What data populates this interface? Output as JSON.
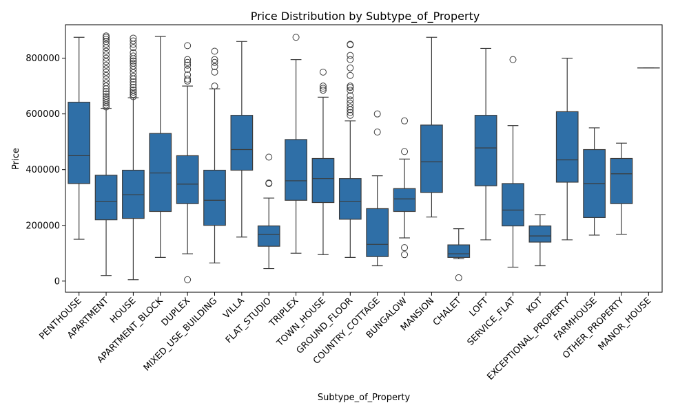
{
  "chart_data": {
    "type": "box",
    "title": "Price Distribution by Subtype_of_Property",
    "xlabel": "Subtype_of_Property",
    "ylabel": "Price",
    "ylim": [
      -40000,
      920000
    ],
    "yticks": [
      0,
      200000,
      400000,
      600000,
      800000
    ],
    "ytick_labels": [
      "0",
      "200000",
      "400000",
      "600000",
      "800000"
    ],
    "box_color": "#2f6fa7",
    "line_color": "#3b3b3b",
    "series": [
      {
        "category": "PENTHOUSE",
        "whisker_low": 150000,
        "q1": 350000,
        "median": 450000,
        "q3": 642000,
        "whisker_high": 875000,
        "outliers": []
      },
      {
        "category": "APARTMENT",
        "whisker_low": 20000,
        "q1": 220000,
        "median": 285000,
        "q3": 380000,
        "whisker_high": 620000,
        "outliers": [
          625000,
          632000,
          640000,
          648000,
          655000,
          663000,
          672000,
          680000,
          690000,
          700000,
          712000,
          725000,
          738000,
          750000,
          762000,
          775000,
          788000,
          800000,
          812000,
          825000,
          838000,
          850000,
          860000,
          868000,
          875000,
          880000
        ]
      },
      {
        "category": "HOUSE",
        "whisker_low": 5000,
        "q1": 225000,
        "median": 310000,
        "q3": 398000,
        "whisker_high": 658000,
        "outliers": [
          662000,
          670000,
          678000,
          686000,
          695000,
          705000,
          715000,
          725000,
          735000,
          748000,
          760000,
          772000,
          782000,
          790000,
          798000,
          808000,
          820000,
          838000,
          850000,
          862000,
          872000
        ]
      },
      {
        "category": "APARTMENT_BLOCK",
        "whisker_low": 85000,
        "q1": 250000,
        "median": 388000,
        "q3": 530000,
        "whisker_high": 878000,
        "outliers": []
      },
      {
        "category": "DUPLEX",
        "whisker_low": 98000,
        "q1": 278000,
        "median": 348000,
        "q3": 450000,
        "whisker_high": 700000,
        "outliers": [
          5000,
          718000,
          725000,
          740000,
          760000,
          775000,
          785000,
          795000,
          845000
        ]
      },
      {
        "category": "MIXED_USE_BUILDING",
        "whisker_low": 65000,
        "q1": 200000,
        "median": 290000,
        "q3": 398000,
        "whisker_high": 690000,
        "outliers": [
          700000,
          750000,
          770000,
          785000,
          795000,
          825000
        ]
      },
      {
        "category": "VILLA",
        "whisker_low": 158000,
        "q1": 398000,
        "median": 472000,
        "q3": 595000,
        "whisker_high": 860000,
        "outliers": []
      },
      {
        "category": "FLAT_STUDIO",
        "whisker_low": 45000,
        "q1": 125000,
        "median": 168000,
        "q3": 198000,
        "whisker_high": 298000,
        "outliers": [
          350000,
          352000,
          445000
        ]
      },
      {
        "category": "TRIPLEX",
        "whisker_low": 100000,
        "q1": 290000,
        "median": 360000,
        "q3": 508000,
        "whisker_high": 795000,
        "outliers": [
          875000
        ]
      },
      {
        "category": "TOWN_HOUSE",
        "whisker_low": 95000,
        "q1": 282000,
        "median": 368000,
        "q3": 440000,
        "whisker_high": 660000,
        "outliers": [
          685000,
          692000,
          700000,
          750000
        ]
      },
      {
        "category": "GROUND_FLOOR",
        "whisker_low": 85000,
        "q1": 222000,
        "median": 285000,
        "q3": 368000,
        "whisker_high": 575000,
        "outliers": [
          595000,
          605000,
          615000,
          625000,
          638000,
          650000,
          665000,
          685000,
          695000,
          700000,
          738000,
          765000,
          795000,
          810000,
          848000,
          850000
        ]
      },
      {
        "category": "COUNTRY_COTTAGE",
        "whisker_low": 55000,
        "q1": 88000,
        "median": 132000,
        "q3": 260000,
        "whisker_high": 378000,
        "outliers": [
          535000,
          600000
        ]
      },
      {
        "category": "BUNGALOW",
        "whisker_low": 155000,
        "q1": 250000,
        "median": 295000,
        "q3": 332000,
        "whisker_high": 438000,
        "outliers": [
          95000,
          120000,
          465000,
          575000
        ]
      },
      {
        "category": "MANSION",
        "whisker_low": 230000,
        "q1": 318000,
        "median": 428000,
        "q3": 560000,
        "whisker_high": 875000,
        "outliers": []
      },
      {
        "category": "CHALET",
        "whisker_low": 80000,
        "q1": 85000,
        "median": 98000,
        "q3": 130000,
        "whisker_high": 188000,
        "outliers": [
          12000
        ]
      },
      {
        "category": "LOFT",
        "whisker_low": 148000,
        "q1": 342000,
        "median": 478000,
        "q3": 595000,
        "whisker_high": 835000,
        "outliers": []
      },
      {
        "category": "SERVICE_FLAT",
        "whisker_low": 50000,
        "q1": 198000,
        "median": 255000,
        "q3": 350000,
        "whisker_high": 558000,
        "outliers": [
          795000
        ]
      },
      {
        "category": "KOT",
        "whisker_low": 55000,
        "q1": 140000,
        "median": 162000,
        "q3": 198000,
        "whisker_high": 238000,
        "outliers": []
      },
      {
        "category": "EXCEPTIONAL_PROPERTY",
        "whisker_low": 148000,
        "q1": 355000,
        "median": 435000,
        "q3": 608000,
        "whisker_high": 800000,
        "outliers": []
      },
      {
        "category": "FARMHOUSE",
        "whisker_low": 165000,
        "q1": 228000,
        "median": 350000,
        "q3": 472000,
        "whisker_high": 550000,
        "outliers": []
      },
      {
        "category": "OTHER_PROPERTY",
        "whisker_low": 168000,
        "q1": 278000,
        "median": 385000,
        "q3": 440000,
        "whisker_high": 495000,
        "outliers": []
      },
      {
        "category": "MANOR_HOUSE",
        "whisker_low": 765000,
        "q1": 765000,
        "median": 765000,
        "q3": 765000,
        "whisker_high": 765000,
        "outliers": []
      }
    ],
    "grid": false,
    "legend": "none"
  }
}
